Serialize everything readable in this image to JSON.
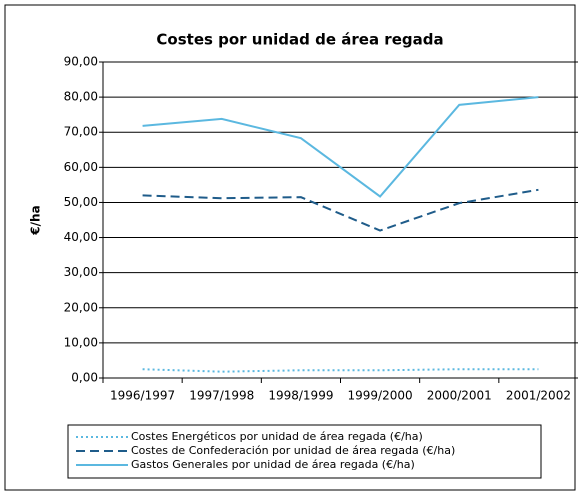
{
  "chart_data": {
    "type": "line",
    "title": "Costes por unidad de área regada",
    "y_label": "€/ha",
    "categories": [
      "1996/1997",
      "1997/1998",
      "1998/1999",
      "1999/2000",
      "2000/2001",
      "2001/2002"
    ],
    "series": [
      {
        "name": "Costes Energéticos por unidad de área regada (€/ha)",
        "color": "#5bb8e0",
        "dash": "dotted",
        "values": [
          2.5,
          1.8,
          2.2,
          2.2,
          2.5,
          2.5
        ]
      },
      {
        "name": "Costes de Confederación por unidad de área regada (€/ha)",
        "color": "#1f5c8a",
        "dash": "dashed",
        "values": [
          52.0,
          51.2,
          51.5,
          42.0,
          49.8,
          53.6
        ]
      },
      {
        "name": "Gastos Generales por unidad de área regada (€/ha)",
        "color": "#5bb8e0",
        "dash": "solid",
        "values": [
          71.8,
          73.8,
          68.3,
          51.7,
          77.8,
          80.0
        ]
      }
    ],
    "ylim": [
      0,
      90
    ],
    "yticks": [
      {
        "value": 0,
        "label": "0,00"
      },
      {
        "value": 10,
        "label": "10,00"
      },
      {
        "value": 20,
        "label": "20,00"
      },
      {
        "value": 30,
        "label": "30,00"
      },
      {
        "value": 40,
        "label": "40,00"
      },
      {
        "value": 50,
        "label": "50,00"
      },
      {
        "value": 60,
        "label": "60,00"
      },
      {
        "value": 70,
        "label": "70,00"
      },
      {
        "value": 80,
        "label": "80,00"
      },
      {
        "value": 90,
        "label": "90,00"
      }
    ],
    "grid": true
  }
}
